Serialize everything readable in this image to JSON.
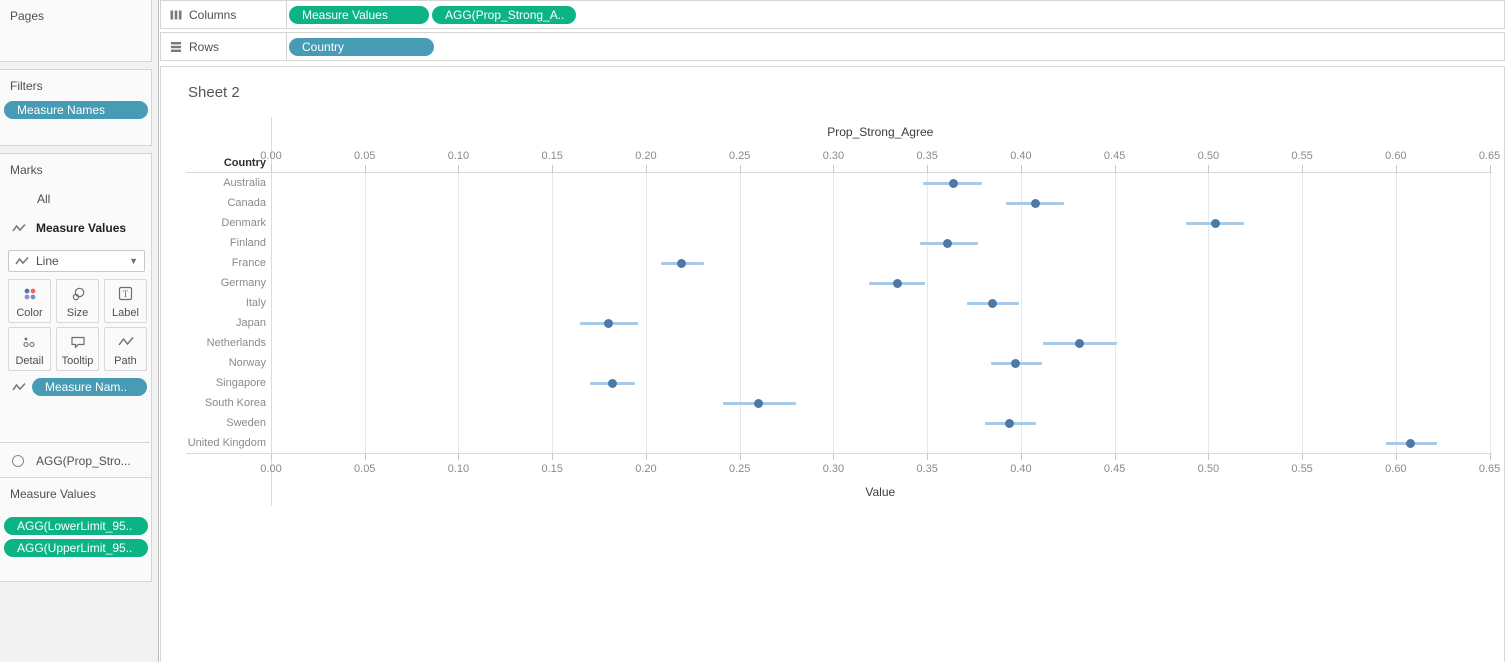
{
  "shelves": {
    "columns": {
      "label": "Columns",
      "pills": [
        {
          "text": "Measure Values"
        },
        {
          "text": "AGG(Prop_Strong_A.."
        }
      ]
    },
    "rows": {
      "label": "Rows",
      "pills": [
        {
          "text": "Country"
        }
      ]
    }
  },
  "sidebar": {
    "pages": {
      "title": "Pages"
    },
    "filters": {
      "title": "Filters",
      "pill": "Measure Names"
    },
    "marks": {
      "title": "Marks",
      "all_label": "All",
      "measure_values_label": "Measure Values",
      "mark_type": "Line",
      "buttons": [
        {
          "label": "Color"
        },
        {
          "label": "Size"
        },
        {
          "label": "Label"
        },
        {
          "label": "Detail"
        },
        {
          "label": "Tooltip"
        },
        {
          "label": "Path"
        }
      ],
      "pill": "Measure Nam..",
      "agg_label": "AGG(Prop_Stro..."
    },
    "measure_values": {
      "title": "Measure Values",
      "pills": [
        {
          "text": "AGG(LowerLimit_95.."
        },
        {
          "text": "AGG(UpperLimit_95.."
        }
      ]
    }
  },
  "sheet": {
    "title": "Sheet 2"
  },
  "chart_data": {
    "type": "scatter",
    "subtype": "dot-plot-with-95pct-error-bars",
    "top_axis_title": "Prop_Strong_Agree",
    "bottom_axis_title": "Value",
    "row_header": "Country",
    "xlim": [
      0.0,
      0.65
    ],
    "tick_labels": [
      "0.00",
      "0.05",
      "0.10",
      "0.15",
      "0.20",
      "0.25",
      "0.30",
      "0.35",
      "0.40",
      "0.45",
      "0.50",
      "0.55",
      "0.60",
      "0.65"
    ],
    "grid": true,
    "legend": "none",
    "categories": [
      "Australia",
      "Canada",
      "Denmark",
      "Finland",
      "France",
      "Germany",
      "Italy",
      "Japan",
      "Netherlands",
      "Norway",
      "Singapore",
      "South Korea",
      "Sweden",
      "United Kingdom"
    ],
    "series": [
      {
        "name": "AGG(Prop_Strong_Agree)",
        "values": [
          0.364,
          0.408,
          0.504,
          0.361,
          0.219,
          0.334,
          0.385,
          0.18,
          0.431,
          0.397,
          0.182,
          0.26,
          0.394,
          0.608
        ]
      },
      {
        "name": "AGG(LowerLimit_95)",
        "values": [
          0.348,
          0.392,
          0.488,
          0.346,
          0.208,
          0.319,
          0.371,
          0.165,
          0.412,
          0.384,
          0.17,
          0.241,
          0.381,
          0.595
        ]
      },
      {
        "name": "AGG(UpperLimit_95)",
        "values": [
          0.379,
          0.423,
          0.519,
          0.377,
          0.231,
          0.349,
          0.399,
          0.196,
          0.451,
          0.411,
          0.194,
          0.28,
          0.408,
          0.622
        ]
      }
    ],
    "colors": {
      "dot": "#4e79a7",
      "interval": "#a9c9e8"
    }
  },
  "colors": {
    "measure_pill": "#0cb485",
    "dimension_pill": "#489bb4",
    "color_icon_dots": [
      "#4e79a7",
      "#ed665a",
      "#9c8ac2",
      "#7295c1"
    ]
  }
}
